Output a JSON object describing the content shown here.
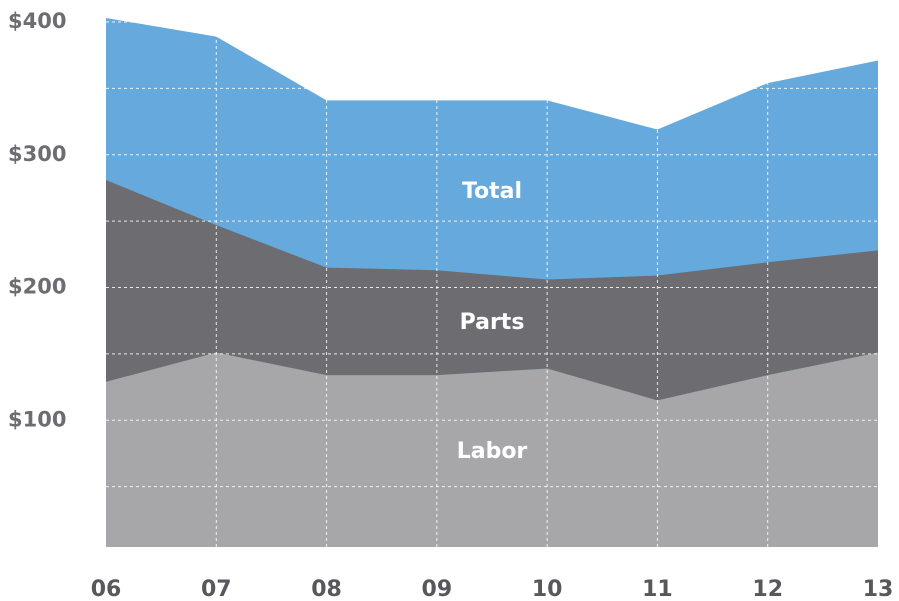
{
  "chart_data": {
    "type": "area",
    "categories": [
      "06",
      "07",
      "08",
      "09",
      "10",
      "11",
      "12",
      "13"
    ],
    "series": [
      {
        "name": "Labor",
        "color": "#a7a7aa",
        "values": [
          129,
          151,
          134,
          134,
          139,
          115,
          134,
          151
        ]
      },
      {
        "name": "Parts",
        "color": "#6d6c71",
        "values": [
          152,
          96,
          81,
          79,
          67,
          94,
          85,
          77
        ]
      },
      {
        "name": "Total",
        "color": "#66aadd",
        "values": [
          403,
          389,
          341,
          341,
          341,
          319,
          354,
          371
        ]
      }
    ],
    "stacked_series": [
      "Labor",
      "Parts"
    ],
    "ylim": [
      0,
      400
    ],
    "yticks": [
      {
        "value": 100,
        "label": "$100"
      },
      {
        "value": 200,
        "label": "$200"
      },
      {
        "value": 300,
        "label": "$300"
      },
      {
        "value": 400,
        "label": "$400"
      }
    ],
    "ygrid": [
      50,
      100,
      150,
      200,
      250,
      300,
      350,
      400
    ],
    "grid": true
  }
}
